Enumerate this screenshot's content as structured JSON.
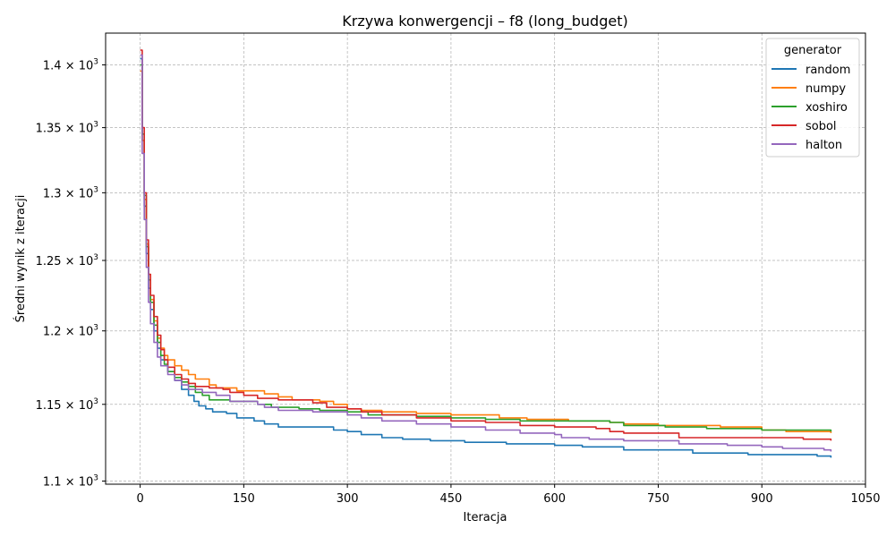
{
  "chart_data": {
    "type": "line",
    "title": "Krzywa konwergencji – f8 (long_budget)",
    "xlabel": "Iteracja",
    "ylabel": "Średni wynik z iteracji",
    "xlim": [
      -50,
      1050
    ],
    "ylim": [
      1098,
      1426
    ],
    "y_scale": "log",
    "grid": true,
    "legend_position": "top-right",
    "legend_title": "generator",
    "x_ticks": [
      {
        "value": 0,
        "label": "0"
      },
      {
        "value": 150,
        "label": "150"
      },
      {
        "value": 300,
        "label": "300"
      },
      {
        "value": 450,
        "label": "450"
      },
      {
        "value": 600,
        "label": "600"
      },
      {
        "value": 750,
        "label": "750"
      },
      {
        "value": 900,
        "label": "900"
      },
      {
        "value": 1050,
        "label": "1050"
      }
    ],
    "y_ticks": [
      {
        "value": 1100,
        "base": "1.1",
        "exp": "3"
      },
      {
        "value": 1150,
        "base": "1.15",
        "exp": "3"
      },
      {
        "value": 1200,
        "base": "1.2",
        "exp": "3"
      },
      {
        "value": 1250,
        "base": "1.25",
        "exp": "3"
      },
      {
        "value": 1300,
        "base": "1.3",
        "exp": "3"
      },
      {
        "value": 1350,
        "base": "1.35",
        "exp": "3"
      },
      {
        "value": 1400,
        "base": "1.4",
        "exp": "3"
      }
    ],
    "series": [
      {
        "name": "random",
        "color": "#1f77b4",
        "points": [
          [
            0,
            1405
          ],
          [
            3,
            1340
          ],
          [
            6,
            1290
          ],
          [
            9,
            1255
          ],
          [
            12,
            1230
          ],
          [
            15,
            1215
          ],
          [
            20,
            1200
          ],
          [
            25,
            1188
          ],
          [
            30,
            1180
          ],
          [
            40,
            1172
          ],
          [
            50,
            1166
          ],
          [
            60,
            1160
          ],
          [
            70,
            1156
          ],
          [
            78,
            1152
          ],
          [
            85,
            1149
          ],
          [
            95,
            1147
          ],
          [
            105,
            1145
          ],
          [
            125,
            1144
          ],
          [
            140,
            1141
          ],
          [
            165,
            1139
          ],
          [
            180,
            1137
          ],
          [
            200,
            1135
          ],
          [
            250,
            1135
          ],
          [
            280,
            1133
          ],
          [
            300,
            1132
          ],
          [
            320,
            1130
          ],
          [
            350,
            1128
          ],
          [
            380,
            1127
          ],
          [
            420,
            1126
          ],
          [
            470,
            1125
          ],
          [
            530,
            1124
          ],
          [
            600,
            1123
          ],
          [
            630,
            1123
          ],
          [
            640,
            1122
          ],
          [
            700,
            1120
          ],
          [
            800,
            1118
          ],
          [
            860,
            1118
          ],
          [
            880,
            1117
          ],
          [
            950,
            1117
          ],
          [
            980,
            1116
          ],
          [
            1000,
            1115
          ]
        ]
      },
      {
        "name": "numpy",
        "color": "#ff7f0e",
        "points": [
          [
            0,
            1395
          ],
          [
            3,
            1340
          ],
          [
            6,
            1295
          ],
          [
            9,
            1262
          ],
          [
            12,
            1240
          ],
          [
            15,
            1222
          ],
          [
            20,
            1207
          ],
          [
            25,
            1195
          ],
          [
            30,
            1188
          ],
          [
            35,
            1183
          ],
          [
            40,
            1180
          ],
          [
            50,
            1176
          ],
          [
            60,
            1173
          ],
          [
            70,
            1170
          ],
          [
            80,
            1167
          ],
          [
            100,
            1163
          ],
          [
            110,
            1161
          ],
          [
            140,
            1159
          ],
          [
            180,
            1157
          ],
          [
            200,
            1155
          ],
          [
            220,
            1153
          ],
          [
            260,
            1152
          ],
          [
            280,
            1150
          ],
          [
            300,
            1147
          ],
          [
            320,
            1146
          ],
          [
            350,
            1145
          ],
          [
            400,
            1144
          ],
          [
            450,
            1143
          ],
          [
            520,
            1141
          ],
          [
            560,
            1140
          ],
          [
            620,
            1139
          ],
          [
            680,
            1138
          ],
          [
            700,
            1137
          ],
          [
            750,
            1136
          ],
          [
            820,
            1136
          ],
          [
            840,
            1135
          ],
          [
            900,
            1133
          ],
          [
            935,
            1132
          ],
          [
            1000,
            1131
          ]
        ]
      },
      {
        "name": "xoshiro",
        "color": "#2ca02c",
        "points": [
          [
            0,
            1400
          ],
          [
            3,
            1345
          ],
          [
            6,
            1298
          ],
          [
            9,
            1260
          ],
          [
            12,
            1236
          ],
          [
            15,
            1220
          ],
          [
            20,
            1204
          ],
          [
            25,
            1192
          ],
          [
            30,
            1183
          ],
          [
            35,
            1177
          ],
          [
            40,
            1172
          ],
          [
            50,
            1168
          ],
          [
            60,
            1165
          ],
          [
            70,
            1162
          ],
          [
            80,
            1158
          ],
          [
            90,
            1156
          ],
          [
            100,
            1153
          ],
          [
            130,
            1152
          ],
          [
            170,
            1150
          ],
          [
            190,
            1148
          ],
          [
            230,
            1147
          ],
          [
            260,
            1146
          ],
          [
            300,
            1145
          ],
          [
            330,
            1143
          ],
          [
            400,
            1142
          ],
          [
            450,
            1141
          ],
          [
            500,
            1140
          ],
          [
            550,
            1139
          ],
          [
            650,
            1139
          ],
          [
            680,
            1138
          ],
          [
            700,
            1136
          ],
          [
            760,
            1135
          ],
          [
            820,
            1134
          ],
          [
            900,
            1133
          ],
          [
            1000,
            1132
          ]
        ]
      },
      {
        "name": "sobol",
        "color": "#d62728",
        "points": [
          [
            0,
            1412
          ],
          [
            3,
            1350
          ],
          [
            6,
            1300
          ],
          [
            9,
            1265
          ],
          [
            12,
            1240
          ],
          [
            15,
            1225
          ],
          [
            20,
            1210
          ],
          [
            25,
            1197
          ],
          [
            30,
            1187
          ],
          [
            35,
            1180
          ],
          [
            40,
            1175
          ],
          [
            50,
            1170
          ],
          [
            60,
            1167
          ],
          [
            70,
            1164
          ],
          [
            80,
            1162
          ],
          [
            100,
            1161
          ],
          [
            120,
            1160
          ],
          [
            130,
            1158
          ],
          [
            150,
            1156
          ],
          [
            170,
            1154
          ],
          [
            200,
            1153
          ],
          [
            250,
            1151
          ],
          [
            270,
            1148
          ],
          [
            300,
            1147
          ],
          [
            320,
            1145
          ],
          [
            350,
            1143
          ],
          [
            400,
            1141
          ],
          [
            450,
            1139
          ],
          [
            500,
            1138
          ],
          [
            550,
            1136
          ],
          [
            600,
            1135
          ],
          [
            640,
            1135
          ],
          [
            660,
            1134
          ],
          [
            680,
            1132
          ],
          [
            700,
            1131
          ],
          [
            760,
            1131
          ],
          [
            780,
            1128
          ],
          [
            850,
            1128
          ],
          [
            900,
            1128
          ],
          [
            960,
            1127
          ],
          [
            1000,
            1126
          ]
        ]
      },
      {
        "name": "halton",
        "color": "#9467bd",
        "points": [
          [
            0,
            1408
          ],
          [
            3,
            1330
          ],
          [
            6,
            1280
          ],
          [
            9,
            1245
          ],
          [
            12,
            1220
          ],
          [
            15,
            1205
          ],
          [
            20,
            1192
          ],
          [
            25,
            1182
          ],
          [
            30,
            1176
          ],
          [
            40,
            1170
          ],
          [
            50,
            1166
          ],
          [
            60,
            1163
          ],
          [
            70,
            1160
          ],
          [
            90,
            1158
          ],
          [
            110,
            1156
          ],
          [
            130,
            1152
          ],
          [
            170,
            1150
          ],
          [
            180,
            1148
          ],
          [
            200,
            1146
          ],
          [
            250,
            1145
          ],
          [
            300,
            1143
          ],
          [
            320,
            1141
          ],
          [
            350,
            1139
          ],
          [
            400,
            1137
          ],
          [
            450,
            1135
          ],
          [
            500,
            1133
          ],
          [
            550,
            1131
          ],
          [
            600,
            1130
          ],
          [
            610,
            1128
          ],
          [
            650,
            1127
          ],
          [
            700,
            1126
          ],
          [
            780,
            1124
          ],
          [
            850,
            1123
          ],
          [
            900,
            1122
          ],
          [
            930,
            1121
          ],
          [
            990,
            1120
          ],
          [
            1000,
            1119
          ]
        ]
      }
    ]
  }
}
